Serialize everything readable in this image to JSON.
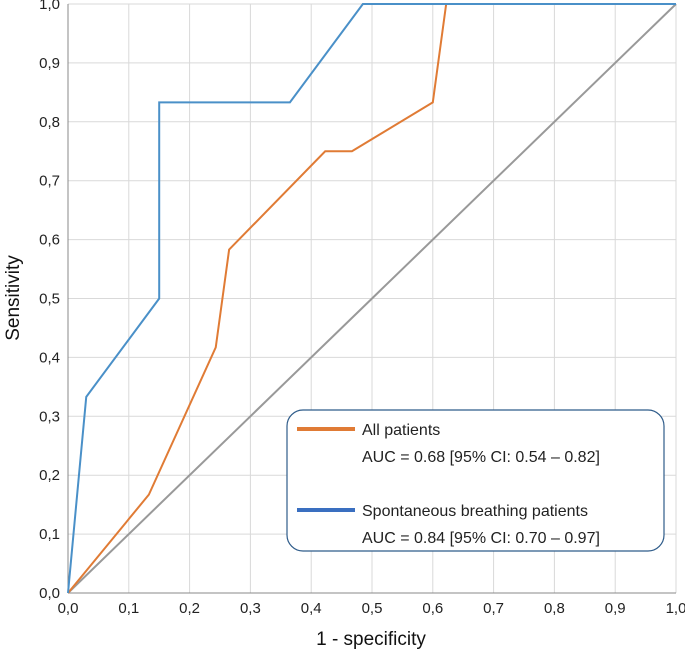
{
  "chart_data": {
    "type": "line",
    "title": "",
    "xlabel": "1 - specificity",
    "ylabel": "Sensitivity",
    "xlim": [
      0,
      1
    ],
    "ylim": [
      0,
      1
    ],
    "grid": true,
    "legend_position": "bottom-right",
    "x_ticks": [
      "0,0",
      "0,1",
      "0,2",
      "0,3",
      "0,4",
      "0,5",
      "0,6",
      "0,7",
      "0,8",
      "0,9",
      "1,0"
    ],
    "y_ticks": [
      "0,0",
      "0,1",
      "0,2",
      "0,3",
      "0,4",
      "0,5",
      "0,6",
      "0,7",
      "0,8",
      "0,9",
      "1,0"
    ],
    "series": [
      {
        "name": "All patients",
        "annotation": "AUC = 0.68 [95% CI: 0.54 – 0.82]",
        "color": "#E07B35",
        "x": [
          0.0,
          0.133,
          0.243,
          0.265,
          0.423,
          0.467,
          0.6,
          0.622,
          1.0
        ],
        "y": [
          0.0,
          0.167,
          0.417,
          0.583,
          0.75,
          0.75,
          0.833,
          1.0,
          1.0
        ]
      },
      {
        "name": "Spontaneous breathing patients",
        "annotation": "AUC = 0.84 [95% CI: 0.70 – 0.97]",
        "color": "#4A90C8",
        "x": [
          0.0,
          0.03,
          0.15,
          0.15,
          0.365,
          0.485,
          1.0
        ],
        "y": [
          0.0,
          0.333,
          0.5,
          0.833,
          0.833,
          1.0,
          1.0
        ]
      },
      {
        "name": "",
        "color": "#999999",
        "x": [
          0.0,
          1.0
        ],
        "y": [
          0.0,
          1.0
        ]
      }
    ],
    "legend_line_colors": [
      "#E07B35",
      "#3A6FC0"
    ]
  }
}
